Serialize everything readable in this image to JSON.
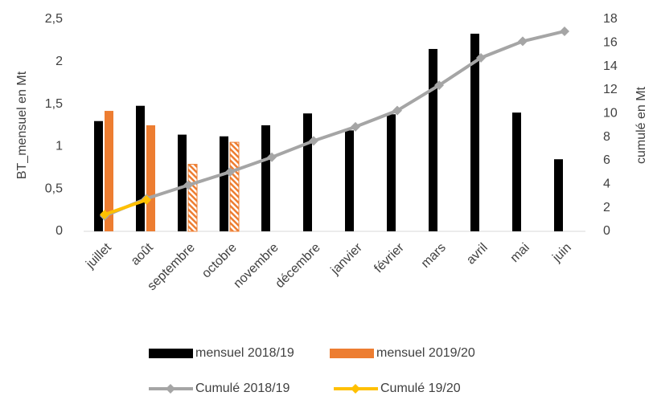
{
  "chart_data": {
    "type": "bar_line",
    "ylabel": "BT_mensuel en Mt",
    "y2label": "cumulé en Mt",
    "categories": [
      "juillet",
      "août",
      "septembre",
      "octobre",
      "novembre",
      "décembre",
      "janvier",
      "février",
      "mars",
      "avril",
      "mai",
      "juin"
    ],
    "series": [
      {
        "name": "mensuel 2018/19",
        "kind": "bar",
        "color": "#000000",
        "values": [
          1.3,
          1.48,
          1.14,
          1.12,
          1.25,
          1.39,
          1.19,
          1.38,
          2.15,
          2.33,
          1.4,
          0.85
        ]
      },
      {
        "name": "mensuel 2019/20",
        "kind": "bar",
        "color": "#ed7d31",
        "values": [
          1.42,
          1.25,
          0.79,
          1.05,
          null,
          null,
          null,
          null,
          null,
          null,
          null,
          null
        ],
        "hatched": [
          false,
          false,
          true,
          true,
          false,
          false,
          false,
          false,
          false,
          false,
          false,
          false
        ]
      },
      {
        "name": "Cumulé 2018/19",
        "kind": "line",
        "axis": "y2",
        "color": "#a5a5a5",
        "values": [
          1.3,
          2.78,
          3.92,
          5.04,
          6.29,
          7.68,
          8.87,
          10.25,
          12.4,
          14.73,
          16.13,
          16.98
        ]
      },
      {
        "name": "Cumulé 19/20",
        "kind": "line",
        "axis": "y2",
        "color": "#ffc000",
        "values": [
          1.42,
          2.67,
          null,
          null,
          null,
          null,
          null,
          null,
          null,
          null,
          null,
          null
        ]
      }
    ],
    "ylim": [
      0,
      2.5
    ],
    "yticks": [
      0,
      {
        "value": 0.5,
        "label": "0,5"
      },
      1,
      {
        "value": 1.5,
        "label": "1,5"
      },
      2,
      {
        "value": 2.5,
        "label": "2,5"
      }
    ],
    "y2lim": [
      0,
      18
    ],
    "y2ticks": [
      0,
      2,
      4,
      6,
      8,
      10,
      12,
      14,
      16,
      18
    ],
    "grid": false
  }
}
